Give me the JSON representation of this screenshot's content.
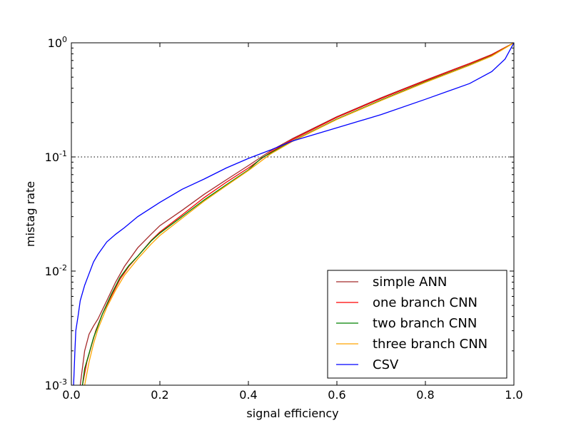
{
  "chart_data": {
    "type": "line",
    "title": "",
    "xlabel": "signal efficiency",
    "ylabel": "mistag rate",
    "xlim": [
      0.0,
      1.0
    ],
    "ylim": [
      0.001,
      1.0
    ],
    "yscale": "log",
    "x_ticks": [
      0.0,
      0.2,
      0.4,
      0.6,
      0.8,
      1.0
    ],
    "x_tick_labels": [
      "0.0",
      "0.2",
      "0.4",
      "0.6",
      "0.8",
      "1.0"
    ],
    "y_ticks": [
      0.001,
      0.01,
      0.1,
      1.0
    ],
    "y_tick_labels": [
      {
        "base": "10",
        "exp": "-3"
      },
      {
        "base": "10",
        "exp": "-2"
      },
      {
        "base": "10",
        "exp": "-1"
      },
      {
        "base": "10",
        "exp": "0"
      }
    ],
    "grid": false,
    "reference_line": {
      "y": 0.1,
      "style": "dotted",
      "color": "#000000"
    },
    "legend_position": "lower-right",
    "series": [
      {
        "name": "simple ANN",
        "color": "#a52a2a",
        "x": [
          0.02,
          0.03,
          0.04,
          0.05,
          0.06,
          0.08,
          0.1,
          0.12,
          0.15,
          0.18,
          0.2,
          0.25,
          0.3,
          0.35,
          0.4,
          0.45,
          0.5,
          0.6,
          0.7,
          0.8,
          0.9,
          0.95,
          1.0
        ],
        "y": [
          0.001,
          0.002,
          0.0028,
          0.0033,
          0.0038,
          0.0055,
          0.008,
          0.011,
          0.016,
          0.021,
          0.025,
          0.034,
          0.047,
          0.063,
          0.084,
          0.113,
          0.145,
          0.225,
          0.33,
          0.47,
          0.66,
          0.79,
          1.0
        ]
      },
      {
        "name": "one branch CNN",
        "color": "#ff0000",
        "x": [
          0.025,
          0.035,
          0.045,
          0.055,
          0.07,
          0.09,
          0.11,
          0.13,
          0.15,
          0.18,
          0.2,
          0.25,
          0.3,
          0.35,
          0.4,
          0.45,
          0.5,
          0.6,
          0.7,
          0.8,
          0.9,
          0.95,
          1.0
        ],
        "y": [
          0.001,
          0.0016,
          0.0022,
          0.003,
          0.0042,
          0.006,
          0.0085,
          0.011,
          0.0135,
          0.0185,
          0.022,
          0.031,
          0.044,
          0.06,
          0.08,
          0.11,
          0.142,
          0.222,
          0.325,
          0.465,
          0.655,
          0.785,
          1.0
        ]
      },
      {
        "name": "two branch CNN",
        "color": "#008000",
        "x": [
          0.025,
          0.03,
          0.04,
          0.05,
          0.07,
          0.09,
          0.11,
          0.13,
          0.15,
          0.18,
          0.2,
          0.25,
          0.3,
          0.35,
          0.4,
          0.43,
          0.45,
          0.5,
          0.6,
          0.7,
          0.8,
          0.9,
          0.95,
          1.0
        ],
        "y": [
          0.001,
          0.0014,
          0.0019,
          0.0026,
          0.0042,
          0.0062,
          0.0088,
          0.0112,
          0.0135,
          0.0183,
          0.0215,
          0.03,
          0.042,
          0.057,
          0.077,
          0.098,
          0.108,
          0.138,
          0.215,
          0.315,
          0.455,
          0.64,
          0.77,
          1.0
        ]
      },
      {
        "name": "three branch CNN",
        "color": "#ffa500",
        "x": [
          0.03,
          0.04,
          0.05,
          0.06,
          0.08,
          0.1,
          0.12,
          0.15,
          0.18,
          0.2,
          0.25,
          0.3,
          0.35,
          0.4,
          0.45,
          0.5,
          0.6,
          0.7,
          0.8,
          0.9,
          0.95,
          1.0
        ],
        "y": [
          0.001,
          0.0016,
          0.0023,
          0.0031,
          0.0048,
          0.0068,
          0.0092,
          0.0128,
          0.0172,
          0.0205,
          0.029,
          0.041,
          0.056,
          0.076,
          0.106,
          0.137,
          0.213,
          0.312,
          0.45,
          0.635,
          0.765,
          1.0
        ]
      },
      {
        "name": "CSV",
        "color": "#0000ff",
        "x": [
          0.005,
          0.008,
          0.01,
          0.015,
          0.02,
          0.03,
          0.04,
          0.05,
          0.06,
          0.08,
          0.1,
          0.12,
          0.15,
          0.2,
          0.25,
          0.3,
          0.35,
          0.4,
          0.45,
          0.5,
          0.6,
          0.7,
          0.8,
          0.9,
          0.95,
          0.98,
          1.0
        ],
        "y": [
          0.001,
          0.002,
          0.003,
          0.004,
          0.0055,
          0.0075,
          0.0095,
          0.012,
          0.014,
          0.018,
          0.021,
          0.024,
          0.03,
          0.04,
          0.052,
          0.064,
          0.08,
          0.097,
          0.115,
          0.138,
          0.18,
          0.235,
          0.32,
          0.44,
          0.56,
          0.72,
          1.0
        ]
      }
    ]
  }
}
